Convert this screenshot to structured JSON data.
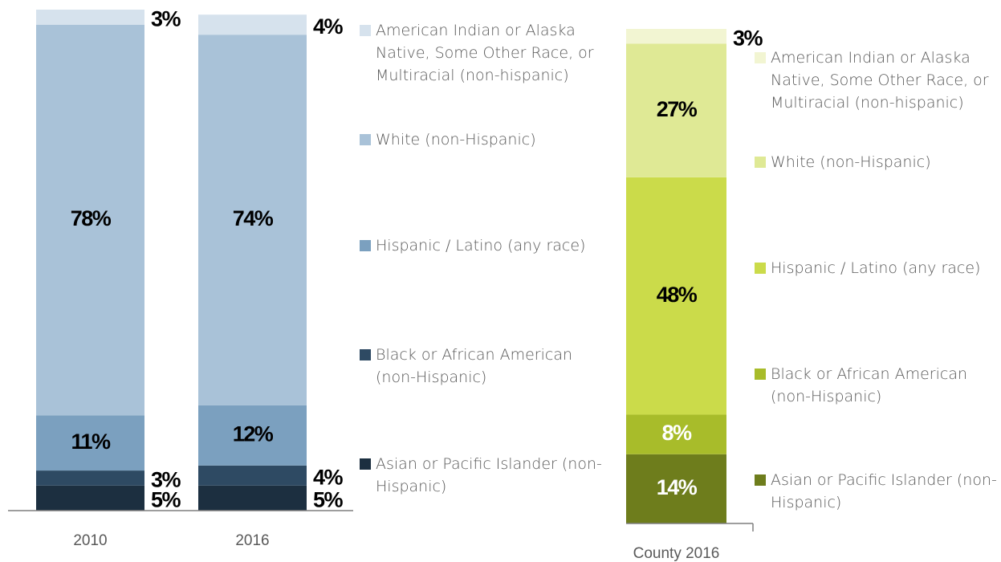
{
  "chart_data": [
    {
      "type": "bar",
      "stacked": true,
      "legend": "right",
      "categories": [
        "2010",
        "2016"
      ],
      "series": [
        {
          "name": "Asian or Pacific Islander (non-Hispanic)",
          "color": "#1c2f40",
          "values": [
            5,
            5
          ],
          "value_labels": [
            "5%",
            "5%"
          ]
        },
        {
          "name": "Black or African American (non-Hispanic)",
          "color": "#2e4a63",
          "values": [
            3,
            4
          ],
          "value_labels": [
            "3%",
            "4%"
          ]
        },
        {
          "name": "Hispanic / Latino (any race)",
          "color": "#7ba0bf",
          "values": [
            11,
            12
          ],
          "value_labels": [
            "11%",
            "12%"
          ]
        },
        {
          "name": "White (non-Hispanic)",
          "color": "#a9c2d8",
          "values": [
            78,
            74
          ],
          "value_labels": [
            "78%",
            "74%"
          ]
        },
        {
          "name": "American Indian or Alaska Native, Some Other Race, or Multiracial (non-hispanic)",
          "color": "#d6e2ed",
          "values": [
            3,
            4
          ],
          "value_labels": [
            "3%",
            "4%"
          ]
        }
      ]
    },
    {
      "type": "bar",
      "stacked": true,
      "legend": "right",
      "categories": [
        "County 2016"
      ],
      "series": [
        {
          "name": "Asian or Pacific Islander (non-Hispanic)",
          "color": "#6e7d1c",
          "values": [
            14
          ],
          "value_labels": [
            "14%"
          ]
        },
        {
          "name": "Black or African American (non-Hispanic)",
          "color": "#a8bc2a",
          "values": [
            8
          ],
          "value_labels": [
            "8%"
          ]
        },
        {
          "name": "Hispanic / Latino (any race)",
          "color": "#cbdb4a",
          "values": [
            48
          ],
          "value_labels": [
            "48%"
          ]
        },
        {
          "name": "White (non-Hispanic)",
          "color": "#dfe995",
          "values": [
            27
          ],
          "value_labels": [
            "27%"
          ]
        },
        {
          "name": "American Indian or Alaska Native, Some Other Race, or Multiracial (non-hispanic)",
          "color": "#f2f5d2",
          "values": [
            3
          ],
          "value_labels": [
            "3%"
          ]
        }
      ]
    }
  ]
}
